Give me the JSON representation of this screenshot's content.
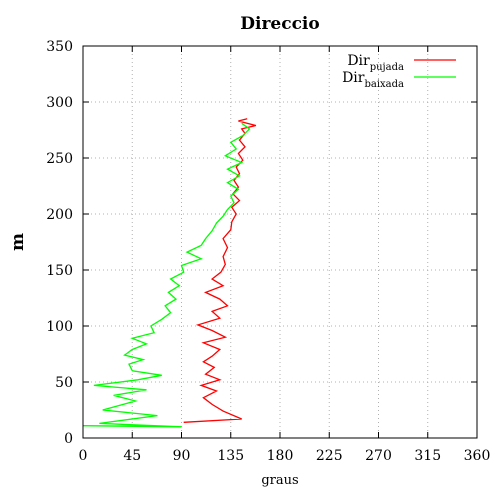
{
  "chart_data": {
    "type": "line",
    "title": "Direccio",
    "xlabel": "graus",
    "ylabel": "m",
    "xlim": [
      0,
      360
    ],
    "ylim": [
      0,
      350
    ],
    "xticks": [
      0,
      45,
      90,
      135,
      180,
      225,
      270,
      315,
      360
    ],
    "yticks": [
      0,
      50,
      100,
      150,
      200,
      250,
      300,
      350
    ],
    "grid": true,
    "legend_position": "top-right",
    "series": [
      {
        "name": "Dir",
        "name_sub": "pujada",
        "color": "#ff0000",
        "points": [
          [
            92,
            14
          ],
          [
            145,
            17
          ],
          [
            128,
            24
          ],
          [
            118,
            30
          ],
          [
            110,
            36
          ],
          [
            122,
            42
          ],
          [
            108,
            47
          ],
          [
            125,
            52
          ],
          [
            112,
            57
          ],
          [
            120,
            63
          ],
          [
            110,
            68
          ],
          [
            118,
            73
          ],
          [
            125,
            79
          ],
          [
            110,
            85
          ],
          [
            130,
            90
          ],
          [
            118,
            96
          ],
          [
            105,
            101
          ],
          [
            125,
            107
          ],
          [
            118,
            113
          ],
          [
            132,
            118
          ],
          [
            125,
            124
          ],
          [
            112,
            130
          ],
          [
            128,
            136
          ],
          [
            118,
            142
          ],
          [
            126,
            148
          ],
          [
            130,
            155
          ],
          [
            128,
            162
          ],
          [
            132,
            170
          ],
          [
            128,
            178
          ],
          [
            135,
            186
          ],
          [
            136,
            193
          ],
          [
            140,
            200
          ],
          [
            136,
            206
          ],
          [
            143,
            212
          ],
          [
            137,
            218
          ],
          [
            142,
            224
          ],
          [
            138,
            230
          ],
          [
            143,
            236
          ],
          [
            140,
            242
          ],
          [
            146,
            248
          ],
          [
            142,
            254
          ],
          [
            148,
            260
          ],
          [
            143,
            266
          ],
          [
            148,
            272
          ],
          [
            145,
            276
          ],
          [
            158,
            279
          ],
          [
            142,
            283
          ],
          [
            150,
            285
          ]
        ]
      },
      {
        "name": "Dir",
        "name_sub": "baixada",
        "color": "#00ff00",
        "points": [
          [
            0,
            11
          ],
          [
            90,
            10
          ],
          [
            15,
            13
          ],
          [
            68,
            20
          ],
          [
            18,
            25
          ],
          [
            48,
            33
          ],
          [
            28,
            38
          ],
          [
            58,
            43
          ],
          [
            10,
            47
          ],
          [
            50,
            52
          ],
          [
            72,
            56
          ],
          [
            45,
            60
          ],
          [
            42,
            66
          ],
          [
            55,
            70
          ],
          [
            38,
            74
          ],
          [
            45,
            79
          ],
          [
            58,
            84
          ],
          [
            45,
            89
          ],
          [
            65,
            94
          ],
          [
            62,
            100
          ],
          [
            72,
            106
          ],
          [
            80,
            112
          ],
          [
            75,
            118
          ],
          [
            85,
            124
          ],
          [
            78,
            130
          ],
          [
            88,
            136
          ],
          [
            80,
            142
          ],
          [
            92,
            148
          ],
          [
            90,
            154
          ],
          [
            108,
            160
          ],
          [
            95,
            166
          ],
          [
            108,
            172
          ],
          [
            112,
            178
          ],
          [
            118,
            185
          ],
          [
            122,
            192
          ],
          [
            128,
            198
          ],
          [
            132,
            204
          ],
          [
            138,
            210
          ],
          [
            135,
            216
          ],
          [
            142,
            222
          ],
          [
            132,
            228
          ],
          [
            143,
            234
          ],
          [
            132,
            240
          ],
          [
            145,
            246
          ],
          [
            130,
            252
          ],
          [
            140,
            258
          ],
          [
            135,
            264
          ],
          [
            146,
            270
          ],
          [
            152,
            276
          ],
          [
            145,
            281
          ]
        ]
      }
    ]
  }
}
